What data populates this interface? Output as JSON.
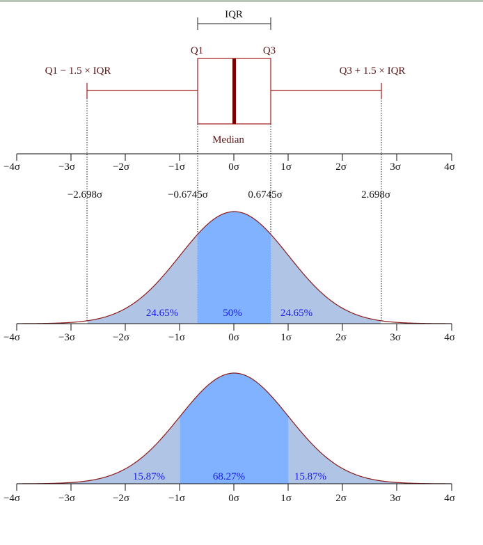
{
  "iqr_label": "IQR",
  "q1_label": "Q1",
  "q3_label": "Q3",
  "lower_fence_label": "Q1 − 1.5 × IQR",
  "upper_fence_label": "Q3 + 1.5 × IQR",
  "median_label": "Median",
  "axis_ticks": [
    "−4σ",
    "−3σ",
    "−2σ",
    "−1σ",
    "0σ",
    "1σ",
    "2σ",
    "3σ",
    "4σ"
  ],
  "quartile_values": {
    "lower_fence": "−2.698σ",
    "q1": "−0.6745σ",
    "q3": "0.6745σ",
    "upper_fence": "2.698σ"
  },
  "panel2_percents": {
    "left": "24.65%",
    "center": "50%",
    "right": "24.65%"
  },
  "panel3_percents": {
    "left": "15.87%",
    "center": "68.27%",
    "right": "15.87%"
  },
  "colors": {
    "curve": "#8b1a1a",
    "box": "#8b1a1a",
    "median": "#7a0000",
    "center_fill": "#80b2ff",
    "tail_fill": "#b0c4e6",
    "percent_text": "#1a1ae6"
  },
  "chart_data": {
    "type": "area",
    "distribution": "standard normal",
    "xlim": [
      -4,
      4
    ],
    "x_ticks": [
      -4,
      -3,
      -2,
      -1,
      0,
      1,
      2,
      3,
      4
    ],
    "boxplot": {
      "lower_whisker": -2.698,
      "q1": -0.6745,
      "median": 0,
      "q3": 0.6745,
      "upper_whisker": 2.698
    },
    "panels": [
      {
        "boundaries": [
          -2.698,
          -0.6745,
          0.6745,
          2.698
        ],
        "shares": [
          24.65,
          50,
          24.65
        ]
      },
      {
        "boundaries": [
          -1,
          1
        ],
        "shares": [
          15.87,
          68.27,
          15.87
        ]
      }
    ]
  }
}
